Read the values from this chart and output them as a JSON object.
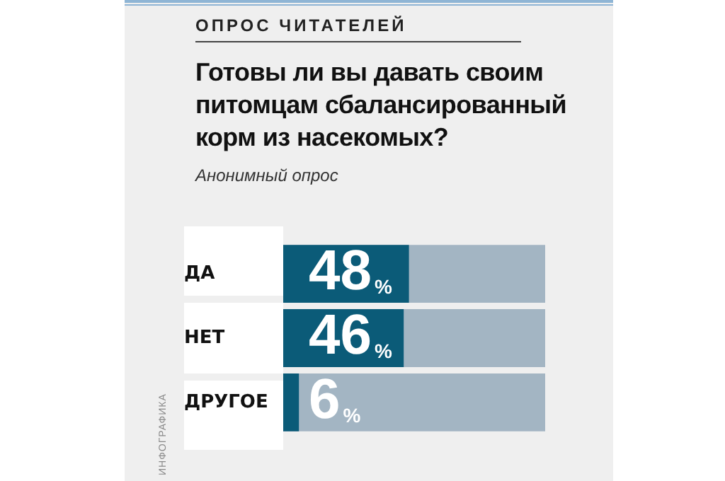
{
  "chart_data": {
    "type": "bar",
    "orientation": "horizontal",
    "subtitle": "ОПРОС ЧИТАТЕЛЕЙ",
    "title": "Готовы ли вы давать своим питомцам сбалансированный корм из насекомых?",
    "annotations": [
      "Анонимный опрос",
      "ИНФОГРАФИКА"
    ],
    "categories": [
      "ДА",
      "НЕТ",
      "ДРУГОЕ"
    ],
    "values": [
      48,
      46,
      6
    ],
    "value_labels": [
      "48%",
      "46%",
      "6%"
    ],
    "color": "#0b5b78",
    "xlim": [
      0,
      100
    ],
    "tick_labels": "y",
    "grid": false,
    "legend": false
  }
}
